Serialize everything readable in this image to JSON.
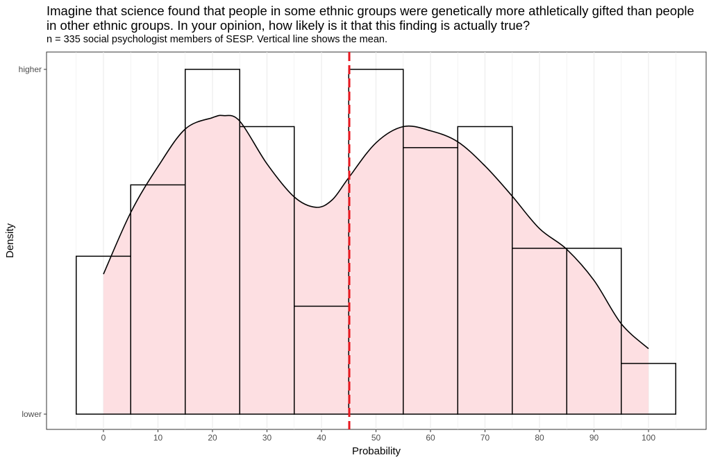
{
  "chart_data": {
    "type": "histogram",
    "title": "Imagine that science found that people in some ethnic groups were genetically more athletically gifted than people in other ethnic groups. In your opinion, how likely is it that this finding is actually true?",
    "subtitle": "n = 335 social psychologist members of SESP. Vertical line shows the mean.",
    "xlabel": "Probability",
    "ylabel": "Density",
    "xlim": [
      -10.5,
      110.5
    ],
    "x_ticks": [
      0,
      10,
      20,
      30,
      40,
      50,
      60,
      70,
      80,
      90,
      100
    ],
    "y_tick_labels": [
      "lower",
      "higher"
    ],
    "grid": true,
    "bin_width": 10,
    "histogram_bins": [
      {
        "center": 0,
        "relative_height": 0.458
      },
      {
        "center": 10,
        "relative_height": 0.665
      },
      {
        "center": 20,
        "relative_height": 1.0
      },
      {
        "center": 30,
        "relative_height": 0.834
      },
      {
        "center": 40,
        "relative_height": 0.313
      },
      {
        "center": 50,
        "relative_height": 1.0
      },
      {
        "center": 60,
        "relative_height": 0.773
      },
      {
        "center": 70,
        "relative_height": 0.834
      },
      {
        "center": 80,
        "relative_height": 0.481
      },
      {
        "center": 90,
        "relative_height": 0.481
      },
      {
        "center": 100,
        "relative_height": 0.147
      }
    ],
    "density_curve": {
      "x": [
        0,
        5,
        10,
        15,
        20,
        22,
        25,
        30,
        35,
        39,
        42,
        45,
        50,
        55,
        60,
        65,
        70,
        75,
        80,
        85,
        90,
        95,
        100
      ],
      "relative_height": [
        0.406,
        0.585,
        0.718,
        0.827,
        0.86,
        0.866,
        0.85,
        0.726,
        0.63,
        0.6,
        0.622,
        0.686,
        0.787,
        0.834,
        0.822,
        0.79,
        0.72,
        0.632,
        0.538,
        0.478,
        0.388,
        0.262,
        0.19
      ]
    },
    "mean": 45.1,
    "colors": {
      "density_fill": "#fddfe2",
      "mean_line": "#e8161e",
      "bar_stroke": "#000000",
      "grid": "#ebebeb"
    }
  }
}
